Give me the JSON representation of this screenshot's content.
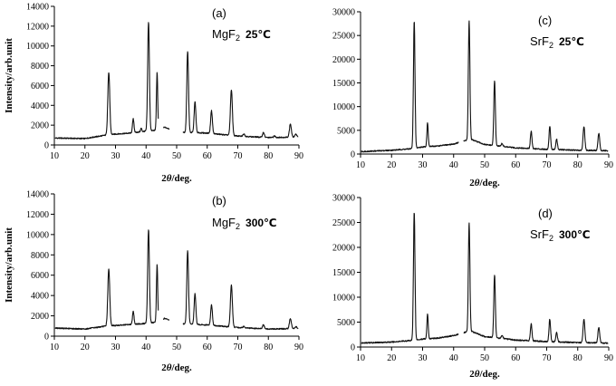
{
  "chart_data": [
    {
      "type": "line",
      "panel_label": "(a)",
      "annotation": {
        "compound": "MgF",
        "subscript": "2",
        "temperature": "25℃"
      },
      "xlabel": "2θ/deg.",
      "ylabel": "Intensity/arb.unit",
      "xlim": [
        10,
        90
      ],
      "ylim": [
        0,
        14000
      ],
      "xticks": [
        10,
        20,
        30,
        40,
        50,
        60,
        70,
        80,
        90
      ],
      "yticks": [
        0,
        2000,
        4000,
        6000,
        8000,
        10000,
        12000,
        14000
      ],
      "grid": false,
      "series": [
        {
          "baseline": [
            [
              10,
              700
            ],
            [
              20,
              650
            ],
            [
              27,
              1000
            ],
            [
              30,
              1100
            ],
            [
              35,
              1200
            ],
            [
              40,
              1400
            ],
            [
              44,
              1500
            ],
            [
              46,
              1800
            ],
            [
              48,
              1600
            ],
            [
              50,
              1300
            ],
            [
              60,
              1200
            ],
            [
              70,
              900
            ],
            [
              80,
              750
            ],
            [
              90,
              800
            ]
          ],
          "peaks": [
            [
              27.8,
              6300,
              0.45
            ],
            [
              35.8,
              1400,
              0.35
            ],
            [
              38.4,
              350,
              0.3
            ],
            [
              40.8,
              11000,
              0.4
            ],
            [
              43.6,
              5800,
              0.3
            ],
            [
              53.6,
              8200,
              0.4
            ],
            [
              56.0,
              3100,
              0.4
            ],
            [
              61.4,
              2300,
              0.4
            ],
            [
              67.9,
              4600,
              0.45
            ],
            [
              72.0,
              250,
              0.4
            ],
            [
              78.4,
              500,
              0.4
            ],
            [
              82.0,
              150,
              0.4
            ],
            [
              87.2,
              1300,
              0.45
            ],
            [
              89.0,
              300,
              0.4
            ]
          ],
          "gaps": [
            [
              44.0,
              45.6
            ],
            [
              47.6,
              52.0
            ]
          ]
        }
      ]
    },
    {
      "type": "line",
      "panel_label": "(c)",
      "annotation": {
        "compound": "SrF",
        "subscript": "2",
        "temperature": "25℃"
      },
      "xlabel": "2θ/deg.",
      "ylabel": "",
      "xlim": [
        10,
        90
      ],
      "ylim": [
        0,
        30000
      ],
      "xticks": [
        10,
        20,
        30,
        40,
        50,
        60,
        70,
        80,
        90
      ],
      "yticks": [
        0,
        5000,
        10000,
        15000,
        20000,
        25000,
        30000
      ],
      "grid": false,
      "series": [
        {
          "baseline": [
            [
              10,
              500
            ],
            [
              20,
              800
            ],
            [
              26,
              1100
            ],
            [
              30,
              1500
            ],
            [
              35,
              1700
            ],
            [
              40,
              2100
            ],
            [
              44,
              2900
            ],
            [
              46,
              3000
            ],
            [
              50,
              2000
            ],
            [
              60,
              1300
            ],
            [
              70,
              1000
            ],
            [
              80,
              800
            ],
            [
              90,
              700
            ]
          ],
          "peaks": [
            [
              27.3,
              26800,
              0.35
            ],
            [
              31.6,
              5000,
              0.3
            ],
            [
              45.0,
              25300,
              0.35
            ],
            [
              53.2,
              13700,
              0.35
            ],
            [
              55.6,
              600,
              0.4
            ],
            [
              65.0,
              3700,
              0.35
            ],
            [
              71.0,
              4900,
              0.35
            ],
            [
              73.2,
              2200,
              0.35
            ],
            [
              82.0,
              5000,
              0.4
            ],
            [
              86.8,
              3600,
              0.4
            ]
          ],
          "gaps": [
            [
              41.6,
              43.2
            ],
            [
              44.9,
              44.9
            ]
          ]
        }
      ]
    },
    {
      "type": "line",
      "panel_label": "(b)",
      "annotation": {
        "compound": "MgF",
        "subscript": "2",
        "temperature": "300℃"
      },
      "xlabel": "2θ/deg.",
      "ylabel": "Intensity/arb.unit",
      "xlim": [
        10,
        90
      ],
      "ylim": [
        0,
        14000
      ],
      "xticks": [
        10,
        20,
        30,
        40,
        50,
        60,
        70,
        80,
        90
      ],
      "yticks": [
        0,
        2000,
        4000,
        6000,
        8000,
        10000,
        12000,
        14000
      ],
      "grid": false,
      "series": [
        {
          "baseline": [
            [
              10,
              800
            ],
            [
              20,
              700
            ],
            [
              27,
              1000
            ],
            [
              30,
              1050
            ],
            [
              35,
              1150
            ],
            [
              40,
              1250
            ],
            [
              44,
              1400
            ],
            [
              46,
              1750
            ],
            [
              48,
              1550
            ],
            [
              50,
              1250
            ],
            [
              60,
              1100
            ],
            [
              70,
              850
            ],
            [
              80,
              700
            ],
            [
              90,
              750
            ]
          ],
          "peaks": [
            [
              27.8,
              5600,
              0.45
            ],
            [
              35.8,
              1300,
              0.35
            ],
            [
              40.8,
              9200,
              0.4
            ],
            [
              43.6,
              5700,
              0.3
            ],
            [
              53.6,
              7200,
              0.4
            ],
            [
              56.0,
              3000,
              0.4
            ],
            [
              61.4,
              2000,
              0.4
            ],
            [
              67.9,
              4100,
              0.45
            ],
            [
              72.0,
              150,
              0.4
            ],
            [
              78.4,
              400,
              0.4
            ],
            [
              87.2,
              1000,
              0.45
            ],
            [
              89.0,
              200,
              0.4
            ]
          ],
          "gaps": [
            [
              44.0,
              45.6
            ],
            [
              47.6,
              52.0
            ]
          ]
        }
      ]
    },
    {
      "type": "line",
      "panel_label": "(d)",
      "annotation": {
        "compound": "SrF",
        "subscript": "2",
        "temperature": "300℃"
      },
      "xlabel": "2θ/deg.",
      "ylabel": "",
      "xlim": [
        10,
        90
      ],
      "ylim": [
        0,
        30000
      ],
      "xticks": [
        10,
        20,
        30,
        40,
        50,
        60,
        70,
        80,
        90
      ],
      "yticks": [
        0,
        5000,
        10000,
        15000,
        20000,
        25000,
        30000
      ],
      "grid": false,
      "series": [
        {
          "baseline": [
            [
              10,
              800
            ],
            [
              20,
              1000
            ],
            [
              26,
              1300
            ],
            [
              30,
              1600
            ],
            [
              35,
              1800
            ],
            [
              40,
              2300
            ],
            [
              44,
              3000
            ],
            [
              46,
              3100
            ],
            [
              50,
              2100
            ],
            [
              60,
              1400
            ],
            [
              70,
              1100
            ],
            [
              80,
              900
            ],
            [
              90,
              800
            ]
          ],
          "peaks": [
            [
              27.3,
              25700,
              0.35
            ],
            [
              31.6,
              4900,
              0.3
            ],
            [
              45.0,
              21900,
              0.35
            ],
            [
              53.2,
              12600,
              0.35
            ],
            [
              55.6,
              600,
              0.4
            ],
            [
              65.0,
              3400,
              0.35
            ],
            [
              71.0,
              4500,
              0.35
            ],
            [
              73.2,
              1900,
              0.35
            ],
            [
              82.0,
              4700,
              0.4
            ],
            [
              86.8,
              3100,
              0.4
            ]
          ],
          "gaps": [
            [
              41.6,
              43.2
            ],
            [
              44.9,
              44.9
            ]
          ]
        }
      ]
    }
  ]
}
